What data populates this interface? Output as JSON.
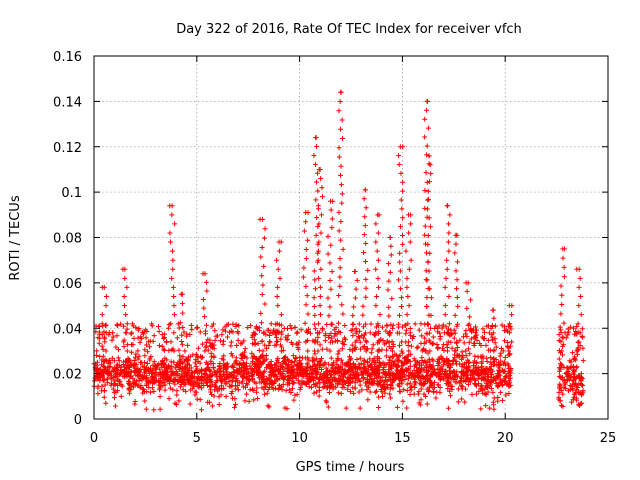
{
  "chart_data": {
    "type": "scatter",
    "title": "Day 322 of 2016, Rate Of TEC Index for receiver vfch",
    "xlabel": "GPS time / hours",
    "ylabel": "ROTI / TECUs",
    "xlim": [
      0,
      25
    ],
    "ylim": [
      0,
      0.16
    ],
    "xticks": [
      0,
      5,
      10,
      15,
      20,
      25
    ],
    "xtick_labels": [
      "0",
      "5",
      "10",
      "15",
      "20",
      "25"
    ],
    "yticks": [
      0,
      0.02,
      0.04,
      0.06,
      0.08,
      0.1,
      0.12,
      0.14,
      0.16
    ],
    "ytick_labels": [
      "0",
      "0.02",
      "0.04",
      "0.06",
      "0.08",
      "0.1",
      "0.12",
      "0.14",
      "0.16"
    ],
    "grid": true,
    "marker": "+",
    "color": "#ff0000",
    "series": [
      {
        "name": "ROTI",
        "segments": [
          {
            "x_start": 0.0,
            "x_end": 20.3,
            "typical_y": [
              0.01,
              0.03
            ]
          },
          {
            "x_start": 22.6,
            "x_end": 23.8,
            "typical_y": [
              0.005,
              0.03
            ]
          }
        ],
        "peaks": [
          {
            "x": 0.5,
            "y": 0.058
          },
          {
            "x": 1.5,
            "y": 0.066
          },
          {
            "x": 3.8,
            "y": 0.094
          },
          {
            "x": 4.3,
            "y": 0.055
          },
          {
            "x": 5.4,
            "y": 0.064
          },
          {
            "x": 8.2,
            "y": 0.088
          },
          {
            "x": 9.0,
            "y": 0.078
          },
          {
            "x": 10.3,
            "y": 0.091
          },
          {
            "x": 10.8,
            "y": 0.124
          },
          {
            "x": 11.0,
            "y": 0.11
          },
          {
            "x": 11.5,
            "y": 0.096
          },
          {
            "x": 12.0,
            "y": 0.144
          },
          {
            "x": 12.7,
            "y": 0.065
          },
          {
            "x": 13.2,
            "y": 0.101
          },
          {
            "x": 13.8,
            "y": 0.09
          },
          {
            "x": 14.4,
            "y": 0.08
          },
          {
            "x": 14.9,
            "y": 0.12
          },
          {
            "x": 15.3,
            "y": 0.09
          },
          {
            "x": 16.2,
            "y": 0.14
          },
          {
            "x": 16.3,
            "y": 0.116
          },
          {
            "x": 17.2,
            "y": 0.094
          },
          {
            "x": 17.6,
            "y": 0.081
          },
          {
            "x": 18.2,
            "y": 0.06
          },
          {
            "x": 19.4,
            "y": 0.048
          },
          {
            "x": 20.2,
            "y": 0.05
          },
          {
            "x": 22.8,
            "y": 0.075
          },
          {
            "x": 23.6,
            "y": 0.066
          }
        ]
      }
    ]
  }
}
